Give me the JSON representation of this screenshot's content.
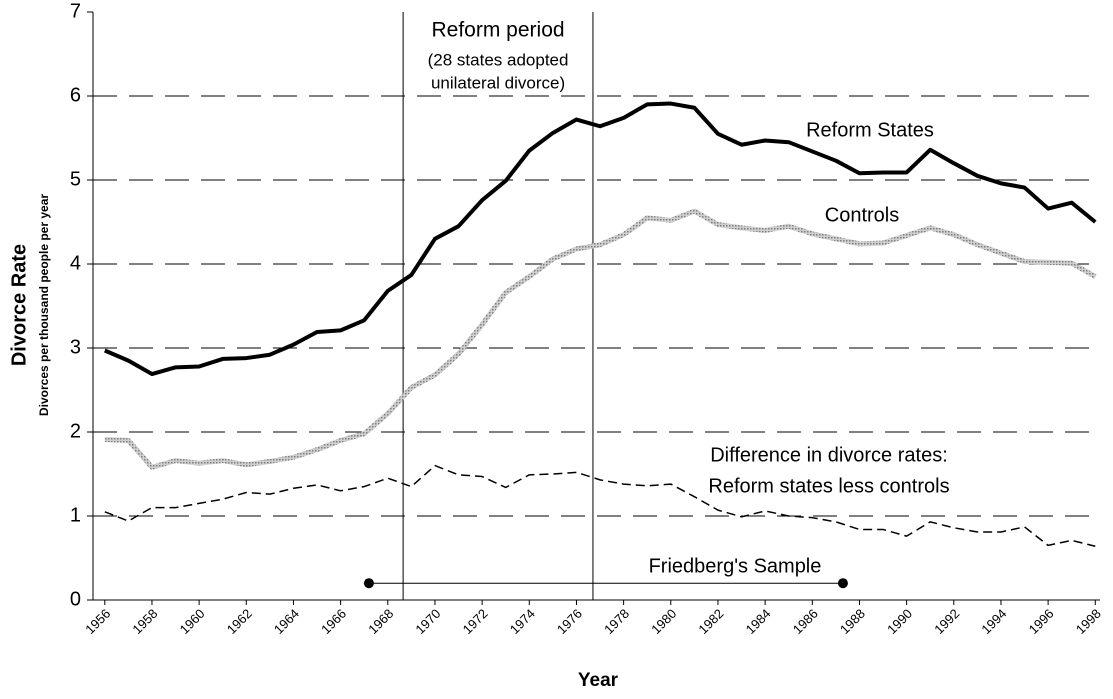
{
  "chart_data": {
    "type": "line",
    "ylabel": "Divorce Rate",
    "ylabel_sub": "Divorces per thousand people per year",
    "xlabel": "Year",
    "x": [
      1956,
      1957,
      1958,
      1959,
      1960,
      1961,
      1962,
      1963,
      1964,
      1965,
      1966,
      1967,
      1968,
      1969,
      1970,
      1971,
      1972,
      1973,
      1974,
      1975,
      1976,
      1977,
      1978,
      1979,
      1980,
      1981,
      1982,
      1983,
      1984,
      1985,
      1986,
      1987,
      1988,
      1989,
      1990,
      1991,
      1992,
      1993,
      1994,
      1995,
      1996,
      1997,
      1998
    ],
    "series": [
      {
        "name": "Reform States",
        "color": "#000000",
        "style": "solid",
        "values": [
          2.97,
          2.85,
          2.69,
          2.77,
          2.78,
          2.87,
          2.88,
          2.92,
          3.04,
          3.19,
          3.21,
          3.33,
          3.68,
          3.87,
          4.3,
          4.45,
          4.76,
          4.99,
          5.35,
          5.56,
          5.72,
          5.64,
          5.74,
          5.9,
          5.91,
          5.86,
          5.55,
          5.42,
          5.47,
          5.45,
          5.34,
          5.23,
          5.08,
          5.09,
          5.09,
          5.36,
          5.2,
          5.05,
          4.96,
          4.91,
          4.66,
          4.73,
          4.5
        ]
      },
      {
        "name": "Controls",
        "color": "#a6a6a6",
        "style": "dotted",
        "values": [
          1.91,
          1.9,
          1.58,
          1.66,
          1.63,
          1.66,
          1.61,
          1.65,
          1.7,
          1.79,
          1.9,
          1.98,
          2.22,
          2.53,
          2.68,
          2.93,
          3.28,
          3.66,
          3.85,
          4.06,
          4.18,
          4.23,
          4.35,
          4.55,
          4.52,
          4.63,
          4.47,
          4.43,
          4.4,
          4.45,
          4.36,
          4.3,
          4.24,
          4.25,
          4.34,
          4.43,
          4.35,
          4.23,
          4.13,
          4.03,
          4.02,
          4.01,
          3.85
        ]
      },
      {
        "name": [
          "Difference in divorce rates:",
          "Reform states less controls"
        ],
        "color": "#000000",
        "style": "dashed",
        "values": [
          1.05,
          0.94,
          1.1,
          1.1,
          1.15,
          1.2,
          1.28,
          1.26,
          1.33,
          1.37,
          1.3,
          1.35,
          1.45,
          1.35,
          1.6,
          1.49,
          1.47,
          1.34,
          1.49,
          1.5,
          1.52,
          1.43,
          1.38,
          1.36,
          1.38,
          1.23,
          1.07,
          0.99,
          1.06,
          1.0,
          0.98,
          0.93,
          0.84,
          0.84,
          0.76,
          0.93,
          0.86,
          0.81,
          0.81,
          0.87,
          0.65,
          0.71,
          0.64
        ]
      }
    ],
    "xlim": [
      1955.5,
      1998.2
    ],
    "xticks": [
      1956,
      1958,
      1960,
      1962,
      1964,
      1966,
      1968,
      1970,
      1972,
      1974,
      1976,
      1978,
      1980,
      1982,
      1984,
      1986,
      1988,
      1990,
      1992,
      1994,
      1996,
      1998
    ],
    "ylim": [
      0,
      7
    ],
    "yticks": [
      0,
      1,
      2,
      3,
      4,
      5,
      6,
      7
    ],
    "grid": true,
    "reform_period": {
      "lines": [
        1968.65,
        1976.7
      ],
      "label": [
        "Reform period",
        "(28 states adopted",
        "unilateral divorce)"
      ]
    },
    "sample": {
      "label": "Friedberg's Sample",
      "x": [
        1967.2,
        1987.3
      ],
      "y": 0.2
    }
  }
}
